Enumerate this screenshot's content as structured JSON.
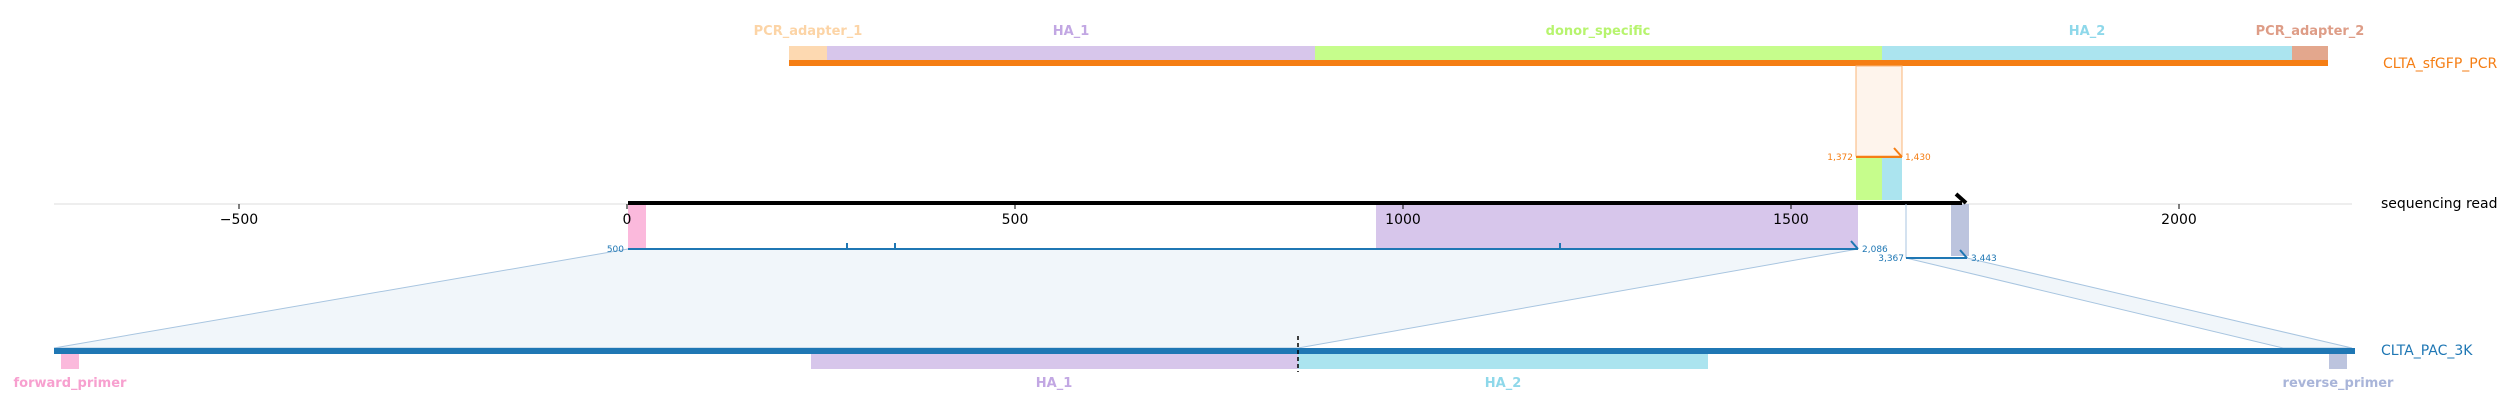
{
  "top_read": {
    "name": "CLTA_sfGFP_PCR",
    "color": "#f57e14",
    "features": [
      {
        "label": "PCR_adapter_1",
        "color": "#fdd9b1",
        "label_color": "#fcd4a6"
      },
      {
        "label": "HA_1",
        "color": "#d7c6eb",
        "label_color": "#c2a7e3"
      },
      {
        "label": "donor_specific",
        "color": "#c6fd8c",
        "label_color": "#b7f46e"
      },
      {
        "label": "HA_2",
        "color": "#abe4ef",
        "label_color": "#8ed8ea"
      },
      {
        "label": "PCR_adapter_2",
        "color": "#e3a78d",
        "label_color": "#de9d87"
      }
    ],
    "mapping_start": "1,372",
    "mapping_end": "1,430"
  },
  "sequencing_read": {
    "name": "sequencing read",
    "axis_ticks": [
      "−500",
      "0",
      "500",
      "1000",
      "1500",
      "2000"
    ],
    "left_label": "500",
    "mid_end": "2,086",
    "right_start": "3,367",
    "right_end": "3,443"
  },
  "bottom_read": {
    "name": "CLTA_PAC_3K",
    "color": "#1f77b4",
    "features": [
      {
        "label": "forward_primer",
        "color": "#fbb9dc",
        "label_color": "#f7a0cf"
      },
      {
        "label": "HA_1",
        "color": "#d7c6eb",
        "label_color": "#c2a7e3"
      },
      {
        "label": "HA_2",
        "color": "#abe4ef",
        "label_color": "#8ed8ea"
      },
      {
        "label": "reverse_primer",
        "color": "#bcc4de",
        "label_color": "#a9b5d9"
      }
    ]
  }
}
